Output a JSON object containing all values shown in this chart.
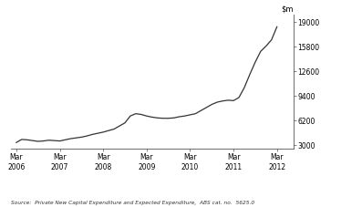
{
  "title": "",
  "source_text": "Source:  Private New Capital Expenditure and Expected Expenditure,  ABS cat. no.  5625.0",
  "yticks": [
    3000,
    6200,
    9400,
    12600,
    15800,
    19000
  ],
  "ylim": [
    2500,
    20000
  ],
  "line_color": "#333333",
  "line_width": 0.9,
  "background_color": "#ffffff",
  "x_labels": [
    "Mar\n2006",
    "Mar\n2007",
    "Mar\n2008",
    "Mar\n2009",
    "Mar\n2010",
    "Mar\n2011",
    "Mar\n2012"
  ],
  "x_positions": [
    0,
    4,
    8,
    12,
    16,
    20,
    24
  ],
  "xlim": [
    -0.5,
    25.5
  ],
  "data_x": [
    0,
    0.5,
    1,
    1.5,
    2,
    2.5,
    3,
    3.5,
    4,
    4.5,
    5,
    5.5,
    6,
    6.5,
    7,
    7.5,
    8,
    8.5,
    9,
    9.5,
    10,
    10.5,
    11,
    11.5,
    12,
    12.5,
    13,
    13.5,
    14,
    14.5,
    15,
    15.5,
    16,
    16.5,
    17,
    17.5,
    18,
    18.5,
    19,
    19.5,
    20,
    20.5,
    21,
    21.5,
    22,
    22.5,
    23,
    23.5,
    24
  ],
  "data_y": [
    3350,
    3750,
    3700,
    3600,
    3500,
    3550,
    3650,
    3600,
    3550,
    3700,
    3850,
    3950,
    4050,
    4200,
    4400,
    4550,
    4700,
    4900,
    5100,
    5500,
    5900,
    6800,
    7100,
    7000,
    6800,
    6650,
    6550,
    6500,
    6500,
    6550,
    6700,
    6800,
    6950,
    7100,
    7500,
    7900,
    8300,
    8600,
    8750,
    8850,
    8800,
    9200,
    10500,
    12200,
    13800,
    15200,
    15900,
    16700,
    18400
  ]
}
